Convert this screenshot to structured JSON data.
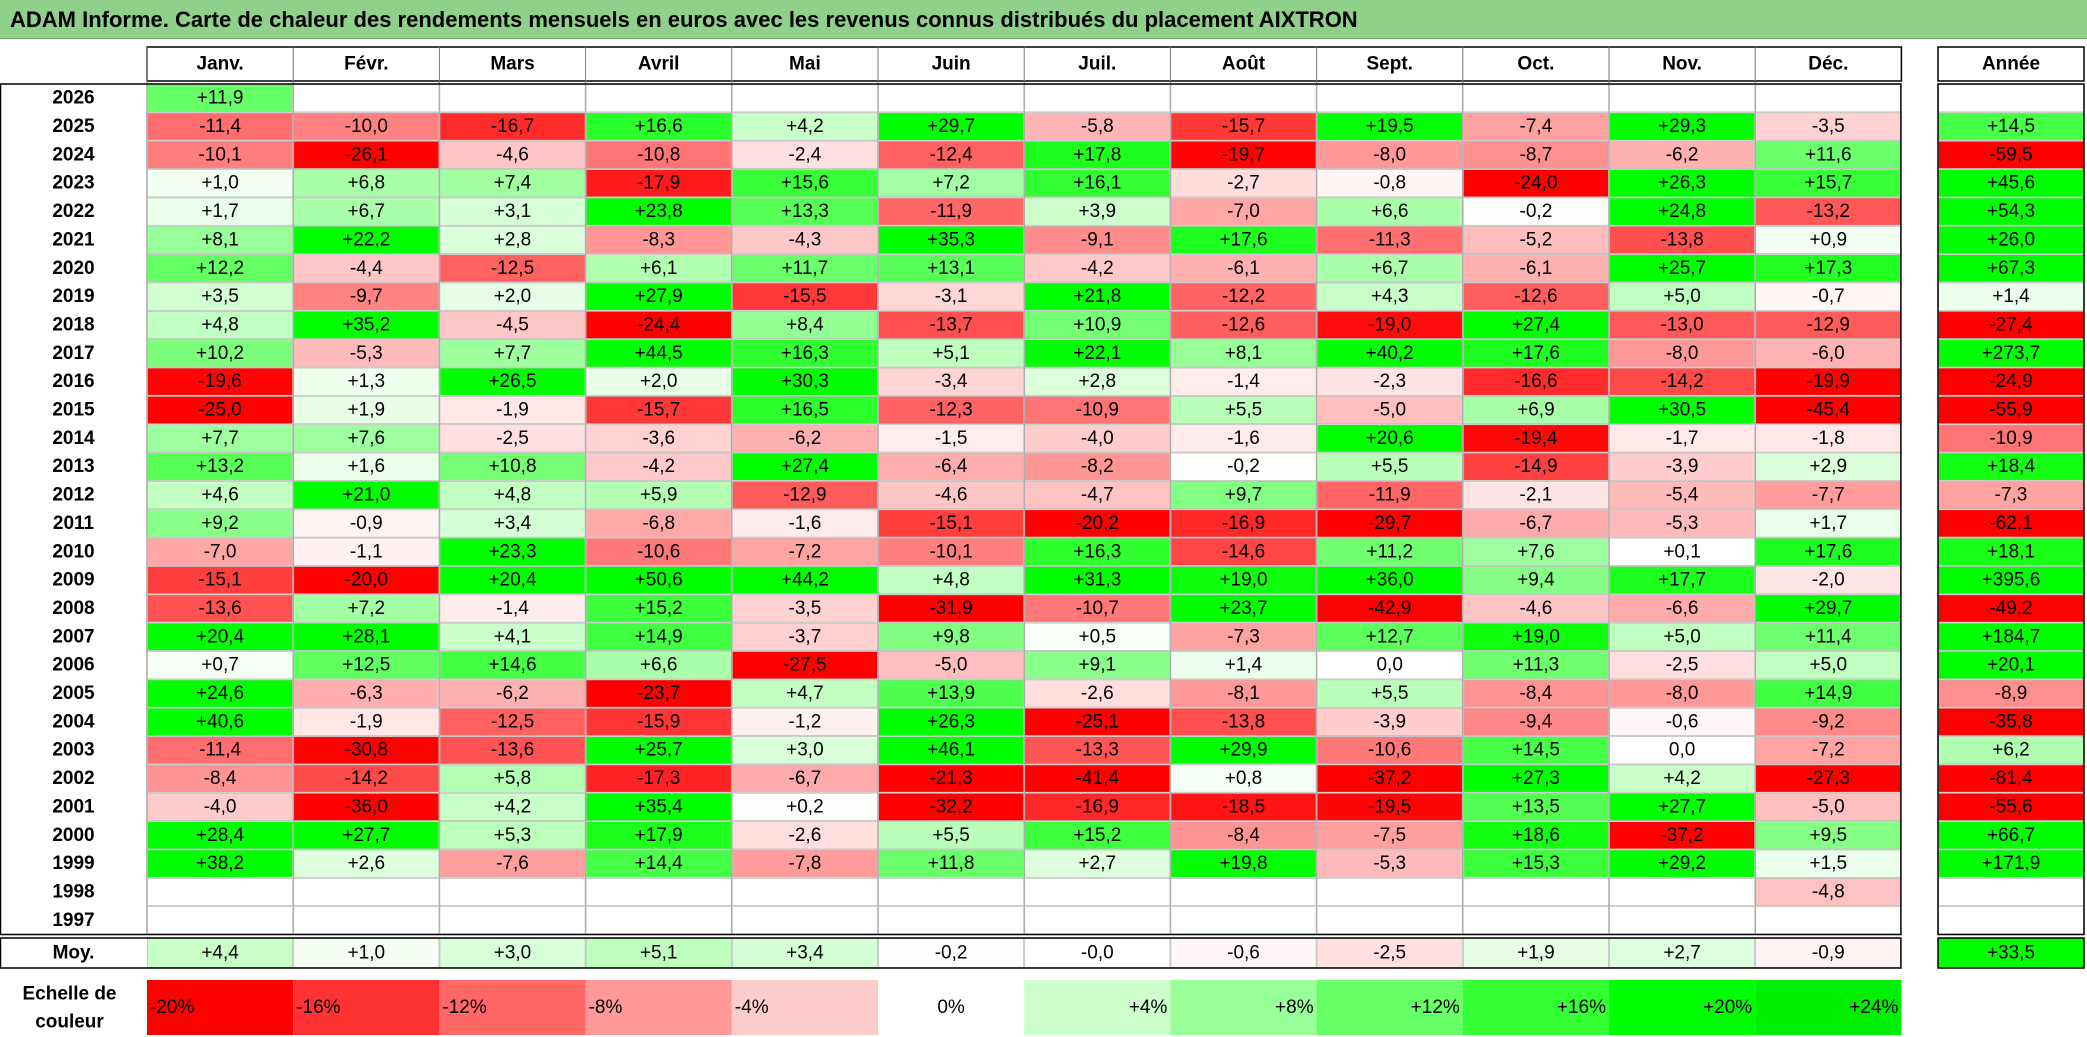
{
  "title": "ADAM Informe. Carte de chaleur des rendements mensuels en euros avec les revenus connus distribués du placement AIXTRON",
  "chart_data": {
    "type": "heatmap",
    "months": [
      "Janv.",
      "Févr.",
      "Mars",
      "Avril",
      "Mai",
      "Juin",
      "Juil.",
      "Août",
      "Sept.",
      "Oct.",
      "Nov.",
      "Déc."
    ],
    "year_header": "Année",
    "rows": [
      {
        "year": "2026",
        "months": [
          "+11,9",
          "",
          "",
          "",
          "",
          "",
          "",
          "",
          "",
          "",
          "",
          ""
        ],
        "annual": ""
      },
      {
        "year": "2025",
        "months": [
          "-11,4",
          "-10,0",
          "-16,7",
          "+16,6",
          "+4,2",
          "+29,7",
          "-5,8",
          "-15,7",
          "+19,5",
          "-7,4",
          "+29,3",
          "-3,5"
        ],
        "annual": "+14,5"
      },
      {
        "year": "2024",
        "months": [
          "-10,1",
          "-26,1",
          "-4,6",
          "-10,8",
          "-2,4",
          "-12,4",
          "+17,8",
          "-19,7",
          "-8,0",
          "-8,7",
          "-6,2",
          "+11,6"
        ],
        "annual": "-59,5"
      },
      {
        "year": "2023",
        "months": [
          "+1,0",
          "+6,8",
          "+7,4",
          "-17,9",
          "+15,6",
          "+7,2",
          "+16,1",
          "-2,7",
          "-0,8",
          "-24,0",
          "+26,3",
          "+15,7"
        ],
        "annual": "+45,6"
      },
      {
        "year": "2022",
        "months": [
          "+1,7",
          "+6,7",
          "+3,1",
          "+23,8",
          "+13,3",
          "-11,9",
          "+3,9",
          "-7,0",
          "+6,6",
          "-0,2",
          "+24,8",
          "-13,2"
        ],
        "annual": "+54,3"
      },
      {
        "year": "2021",
        "months": [
          "+8,1",
          "+22,2",
          "+2,8",
          "-8,3",
          "-4,3",
          "+35,3",
          "-9,1",
          "+17,6",
          "-11,3",
          "-5,2",
          "-13,8",
          "+0,9"
        ],
        "annual": "+26,0"
      },
      {
        "year": "2020",
        "months": [
          "+12,2",
          "-4,4",
          "-12,5",
          "+6,1",
          "+11,7",
          "+13,1",
          "-4,2",
          "-6,1",
          "+6,7",
          "-6,1",
          "+25,7",
          "+17,3"
        ],
        "annual": "+67,3"
      },
      {
        "year": "2019",
        "months": [
          "+3,5",
          "-9,7",
          "+2,0",
          "+27,9",
          "-15,5",
          "-3,1",
          "+21,8",
          "-12,2",
          "+4,3",
          "-12,6",
          "+5,0",
          "-0,7"
        ],
        "annual": "+1,4"
      },
      {
        "year": "2018",
        "months": [
          "+4,8",
          "+35,2",
          "-4,5",
          "-24,4",
          "+8,4",
          "-13,7",
          "+10,9",
          "-12,6",
          "-19,0",
          "+27,4",
          "-13,0",
          "-12,9"
        ],
        "annual": "-27,4"
      },
      {
        "year": "2017",
        "months": [
          "+10,2",
          "-5,3",
          "+7,7",
          "+44,5",
          "+16,3",
          "+5,1",
          "+22,1",
          "+8,1",
          "+40,2",
          "+17,6",
          "-8,0",
          "-6,0"
        ],
        "annual": "+273,7"
      },
      {
        "year": "2016",
        "months": [
          "-19,6",
          "+1,3",
          "+26,5",
          "+2,0",
          "+30,3",
          "-3,4",
          "+2,8",
          "-1,4",
          "-2,3",
          "-16,6",
          "-14,2",
          "-19,9"
        ],
        "annual": "-24,9"
      },
      {
        "year": "2015",
        "months": [
          "-25,0",
          "+1,9",
          "-1,9",
          "-15,7",
          "+16,5",
          "-12,3",
          "-10,9",
          "+5,5",
          "-5,0",
          "+6,9",
          "+30,5",
          "-45,4"
        ],
        "annual": "-55,9"
      },
      {
        "year": "2014",
        "months": [
          "+7,7",
          "+7,6",
          "-2,5",
          "-3,6",
          "-6,2",
          "-1,5",
          "-4,0",
          "-1,6",
          "+20,6",
          "-19,4",
          "-1,7",
          "-1,8"
        ],
        "annual": "-10,9"
      },
      {
        "year": "2013",
        "months": [
          "+13,2",
          "+1,6",
          "+10,8",
          "-4,2",
          "+27,4",
          "-6,4",
          "-8,2",
          "-0,2",
          "+5,5",
          "-14,9",
          "-3,9",
          "+2,9"
        ],
        "annual": "+18,4"
      },
      {
        "year": "2012",
        "months": [
          "+4,6",
          "+21,0",
          "+4,8",
          "+5,9",
          "-12,9",
          "-4,6",
          "-4,7",
          "+9,7",
          "-11,9",
          "-2,1",
          "-5,4",
          "-7,7"
        ],
        "annual": "-7,3"
      },
      {
        "year": "2011",
        "months": [
          "+9,2",
          "-0,9",
          "+3,4",
          "-6,8",
          "-1,6",
          "-15,1",
          "-20,2",
          "-16,9",
          "-29,7",
          "-6,7",
          "-5,3",
          "+1,7"
        ],
        "annual": "-62,1"
      },
      {
        "year": "2010",
        "months": [
          "-7,0",
          "-1,1",
          "+23,3",
          "-10,6",
          "-7,2",
          "-10,1",
          "+16,3",
          "-14,6",
          "+11,2",
          "+7,6",
          "+0,1",
          "+17,6"
        ],
        "annual": "+18,1"
      },
      {
        "year": "2009",
        "months": [
          "-15,1",
          "-20,0",
          "+20,4",
          "+50,6",
          "+44,2",
          "+4,8",
          "+31,3",
          "+19,0",
          "+36,0",
          "+9,4",
          "+17,7",
          "-2,0"
        ],
        "annual": "+395,6"
      },
      {
        "year": "2008",
        "months": [
          "-13,6",
          "+7,2",
          "-1,4",
          "+15,2",
          "-3,5",
          "-31,9",
          "-10,7",
          "+23,7",
          "-42,9",
          "-4,6",
          "-6,6",
          "+29,7"
        ],
        "annual": "-49,2"
      },
      {
        "year": "2007",
        "months": [
          "+20,4",
          "+28,1",
          "+4,1",
          "+14,9",
          "-3,7",
          "+9,8",
          "+0,5",
          "-7,3",
          "+12,7",
          "+19,0",
          "+5,0",
          "+11,4"
        ],
        "annual": "+184,7"
      },
      {
        "year": "2006",
        "months": [
          "+0,7",
          "+12,5",
          "+14,6",
          "+6,6",
          "-27,5",
          "-5,0",
          "+9,1",
          "+1,4",
          "0,0",
          "+11,3",
          "-2,5",
          "+5,0"
        ],
        "annual": "+20,1"
      },
      {
        "year": "2005",
        "months": [
          "+24,6",
          "-6,3",
          "-6,2",
          "-23,7",
          "+4,7",
          "+13,9",
          "-2,6",
          "-8,1",
          "+5,5",
          "-8,4",
          "-8,0",
          "+14,9"
        ],
        "annual": "-8,9"
      },
      {
        "year": "2004",
        "months": [
          "+40,6",
          "-1,9",
          "-12,5",
          "-15,9",
          "-1,2",
          "+26,3",
          "-25,1",
          "-13,8",
          "-3,9",
          "-9,4",
          "-0,6",
          "-9,2"
        ],
        "annual": "-35,8"
      },
      {
        "year": "2003",
        "months": [
          "-11,4",
          "-30,8",
          "-13,6",
          "+25,7",
          "+3,0",
          "+46,1",
          "-13,3",
          "+29,9",
          "-10,6",
          "+14,5",
          "0,0",
          "-7,2"
        ],
        "annual": "+6,2"
      },
      {
        "year": "2002",
        "months": [
          "-8,4",
          "-14,2",
          "+5,8",
          "-17,3",
          "-6,7",
          "-21,3",
          "-41,4",
          "+0,8",
          "-37,2",
          "+27,3",
          "+4,2",
          "-27,3"
        ],
        "annual": "-81,4"
      },
      {
        "year": "2001",
        "months": [
          "-4,0",
          "-36,0",
          "+4,2",
          "+35,4",
          "+0,2",
          "-32,2",
          "-16,9",
          "-18,5",
          "-19,5",
          "+13,5",
          "+27,7",
          "-5,0"
        ],
        "annual": "-55,6"
      },
      {
        "year": "2000",
        "months": [
          "+28,4",
          "+27,7",
          "+5,3",
          "+17,9",
          "-2,6",
          "+5,5",
          "+15,2",
          "-8,4",
          "-7,5",
          "+18,6",
          "-37,2",
          "+9,5"
        ],
        "annual": "+66,7"
      },
      {
        "year": "1999",
        "months": [
          "+38,2",
          "+2,6",
          "-7,6",
          "+14,4",
          "-7,8",
          "+11,8",
          "+2,7",
          "+19,8",
          "-5,3",
          "+15,3",
          "+29,2",
          "+1,5"
        ],
        "annual": "+171,9"
      },
      {
        "year": "1998",
        "months": [
          "",
          "",
          "",
          "",
          "",
          "",
          "",
          "",
          "",
          "",
          "",
          "-4,8"
        ],
        "annual": ""
      },
      {
        "year": "1997",
        "months": [
          "",
          "",
          "",
          "",
          "",
          "",
          "",
          "",
          "",
          "",
          "",
          ""
        ],
        "annual": ""
      }
    ],
    "average": {
      "label": "Moy.",
      "months": [
        "+4,4",
        "+1,0",
        "+3,0",
        "+5,1",
        "+3,4",
        "-0,2",
        "-0,0",
        "-0,6",
        "-2,5",
        "+1,9",
        "+2,7",
        "-0,9"
      ],
      "annual": "+33,5"
    },
    "scale": {
      "label_line1": "Echelle de",
      "label_line2": "couleur",
      "steps": [
        {
          "label": "-20%",
          "value": -20,
          "color": "#ff0000",
          "align": "start"
        },
        {
          "label": "-16%",
          "value": -16,
          "color": "#ff3333",
          "align": "start"
        },
        {
          "label": "-12%",
          "value": -12,
          "color": "#ff6666",
          "align": "start"
        },
        {
          "label": "-8%",
          "value": -8,
          "color": "#ff9999",
          "align": "start"
        },
        {
          "label": "-4%",
          "value": -4,
          "color": "#ffcccc",
          "align": "start"
        },
        {
          "label": "0%",
          "value": 0,
          "color": "#ffffff",
          "align": "middle"
        },
        {
          "label": "+4%",
          "value": 4,
          "color": "#ccffcc",
          "align": "end"
        },
        {
          "label": "+8%",
          "value": 8,
          "color": "#99ff99",
          "align": "end"
        },
        {
          "label": "+12%",
          "value": 12,
          "color": "#66ff66",
          "align": "end"
        },
        {
          "label": "+16%",
          "value": 16,
          "color": "#33ff33",
          "align": "end"
        },
        {
          "label": "+20%",
          "value": 20,
          "color": "#00ff00",
          "align": "end"
        },
        {
          "label": "+24%",
          "value": 24,
          "color": "#00ee00",
          "align": "end"
        }
      ]
    }
  }
}
